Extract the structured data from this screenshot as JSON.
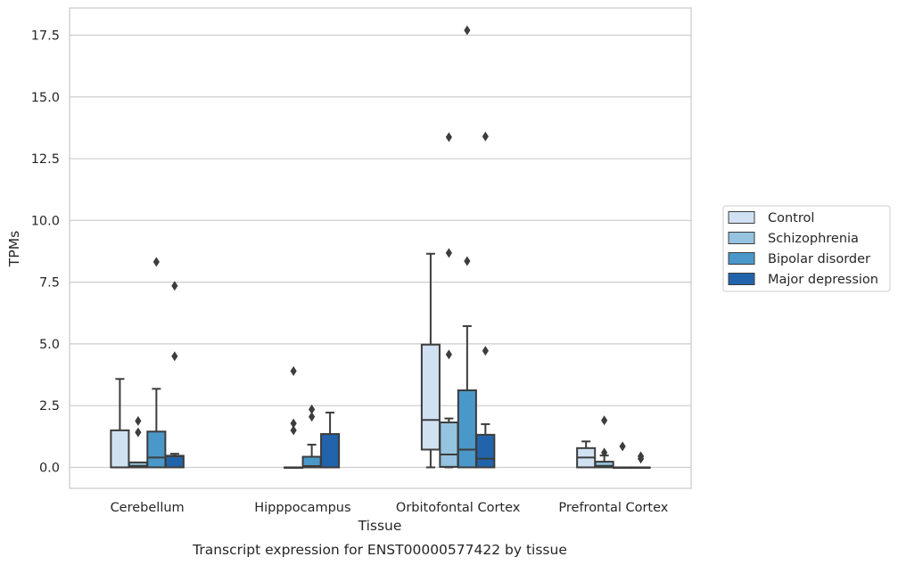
{
  "chart_data": {
    "type": "box",
    "title": "",
    "caption": "Transcript expression for ENST00000577422 by tissue",
    "xlabel": "Tissue",
    "ylabel": "TPMs",
    "ylim": [
      -0.85,
      18.6
    ],
    "yticks": [
      0.0,
      2.5,
      5.0,
      7.5,
      10.0,
      12.5,
      15.0,
      17.5
    ],
    "ytick_labels": [
      "0.0",
      "2.5",
      "5.0",
      "7.5",
      "10.0",
      "12.5",
      "15.0",
      "17.5"
    ],
    "grid": "horizontal",
    "legend_position": "right",
    "categories": [
      "Cerebellum",
      "Hipppocampus",
      "Orbitofontal Cortex",
      "Prefrontal Cortex"
    ],
    "series": [
      {
        "name": "Control",
        "color": "#d0e1f2",
        "boxes": [
          {
            "min": 0.0,
            "q1": 0.0,
            "median": 0.0,
            "q3": 1.5,
            "max": 3.58,
            "outliers": []
          },
          null,
          {
            "min": 0.0,
            "q1": 0.72,
            "median": 1.92,
            "q3": 4.97,
            "max": 8.65,
            "outliers": []
          },
          {
            "min": 0.0,
            "q1": 0.0,
            "median": 0.4,
            "q3": 0.78,
            "max": 1.05,
            "outliers": []
          }
        ]
      },
      {
        "name": "Schizophrenia",
        "color": "#94c4df",
        "boxes": [
          {
            "min": 0.0,
            "q1": 0.0,
            "median": 0.06,
            "q3": 0.2,
            "max": 0.2,
            "outliers": [
              1.42,
              1.88
            ]
          },
          {
            "min": 0.0,
            "q1": 0.0,
            "median": 0.0,
            "q3": 0.0,
            "max": 0.0,
            "outliers": [
              1.5,
              1.78,
              3.9
            ]
          },
          {
            "min": 0.0,
            "q1": 0.02,
            "median": 0.52,
            "q3": 1.82,
            "max": 1.98,
            "outliers": [
              4.57,
              8.68,
              13.37
            ]
          },
          {
            "min": 0.0,
            "q1": 0.0,
            "median": 0.06,
            "q3": 0.23,
            "max": 0.48,
            "outliers": [
              0.6,
              1.9
            ]
          }
        ]
      },
      {
        "name": "Bipolar disorder",
        "color": "#4a98c9",
        "boxes": [
          {
            "min": 0.0,
            "q1": 0.0,
            "median": 0.4,
            "q3": 1.45,
            "max": 3.18,
            "outliers": [
              8.32
            ]
          },
          {
            "min": 0.0,
            "q1": 0.0,
            "median": 0.05,
            "q3": 0.43,
            "max": 0.92,
            "outliers": [
              2.05,
              2.35
            ]
          },
          {
            "min": 0.0,
            "q1": 0.0,
            "median": 0.72,
            "q3": 3.12,
            "max": 5.72,
            "outliers": [
              8.35,
              17.7
            ]
          },
          {
            "min": 0.0,
            "q1": 0.0,
            "median": 0.0,
            "q3": 0.0,
            "max": 0.0,
            "outliers": [
              0.85
            ]
          }
        ]
      },
      {
        "name": "Major depression",
        "color": "#2164ab",
        "boxes": [
          {
            "min": 0.0,
            "q1": 0.0,
            "median": 0.45,
            "q3": 0.47,
            "max": 0.55,
            "outliers": [
              4.5,
              7.35
            ]
          },
          {
            "min": 0.0,
            "q1": 0.0,
            "median": 0.0,
            "q3": 1.35,
            "max": 2.22,
            "outliers": []
          },
          {
            "min": 0.0,
            "q1": 0.0,
            "median": 0.35,
            "q3": 1.32,
            "max": 1.75,
            "outliers": [
              4.72,
              13.4
            ]
          },
          {
            "min": 0.0,
            "q1": 0.0,
            "median": 0.0,
            "q3": 0.0,
            "max": 0.0,
            "outliers": [
              0.35,
              0.45
            ]
          }
        ]
      }
    ]
  }
}
